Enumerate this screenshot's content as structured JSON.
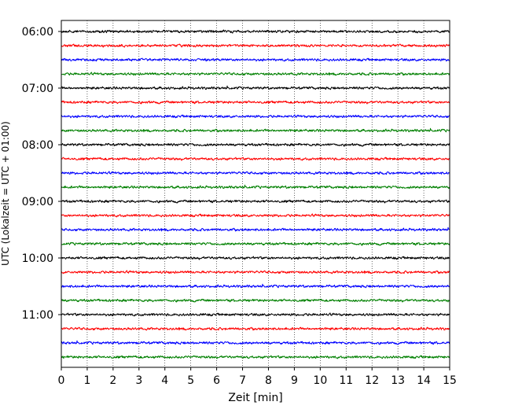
{
  "chart_data": {
    "type": "line",
    "subtype": "helicorder",
    "xlabel": "Zeit  [min]",
    "ylabel": "UTC (Lokalzeit = UTC + 01:00)",
    "xlim": [
      0,
      15
    ],
    "x_ticks": [
      "0",
      "1",
      "2",
      "3",
      "4",
      "5",
      "6",
      "7",
      "8",
      "9",
      "10",
      "11",
      "12",
      "13",
      "14",
      "15"
    ],
    "y_tick_labels": [
      "06:00",
      "07:00",
      "08:00",
      "09:00",
      "10:00",
      "11:00"
    ],
    "trace_interval_minutes": 15,
    "trace_start_times": [
      "06:00",
      "06:15",
      "06:30",
      "06:45",
      "07:00",
      "07:15",
      "07:30",
      "07:45",
      "08:00",
      "08:15",
      "08:30",
      "08:45",
      "09:00",
      "09:15",
      "09:30",
      "09:45",
      "10:00",
      "10:15",
      "10:30",
      "10:45",
      "11:00",
      "11:15",
      "11:30",
      "11:45"
    ],
    "trace_colors": [
      "#000000",
      "#ff0000",
      "#0000ff",
      "#008000"
    ],
    "grid": "vertical dotted lines at each minute",
    "legend": "none"
  }
}
